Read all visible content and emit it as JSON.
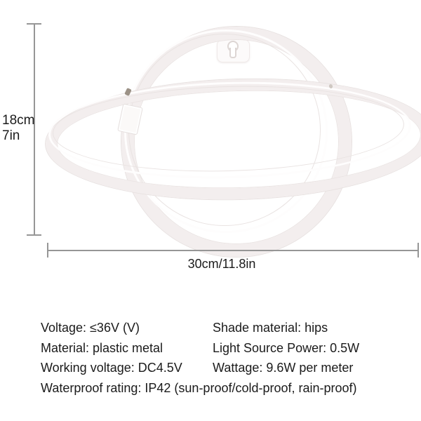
{
  "product": {
    "name": "planet saturn neon light sign",
    "tube_color": "#f3eeee",
    "tube_edge_color": "#e7e1e0"
  },
  "dimension_annotations": {
    "height": {
      "cm": "18cm",
      "inches": "7in"
    },
    "width": {
      "label": "30cm/11.8in"
    },
    "line_color": "#969696"
  },
  "specs": {
    "left_column": [
      "Voltage: ≤36V (V)",
      "Material: plastic metal",
      "Working voltage: DC4.5V"
    ],
    "right_column": [
      "Shade material: hips",
      "Light Source Power: 0.5W",
      "Wattage: 9.6W per meter"
    ],
    "full_width_row": "Waterproof rating: IP42 (sun-proof/cold-proof, rain-proof)"
  },
  "style": {
    "background": "#ffffff",
    "text_color": "#1b1b1b"
  }
}
